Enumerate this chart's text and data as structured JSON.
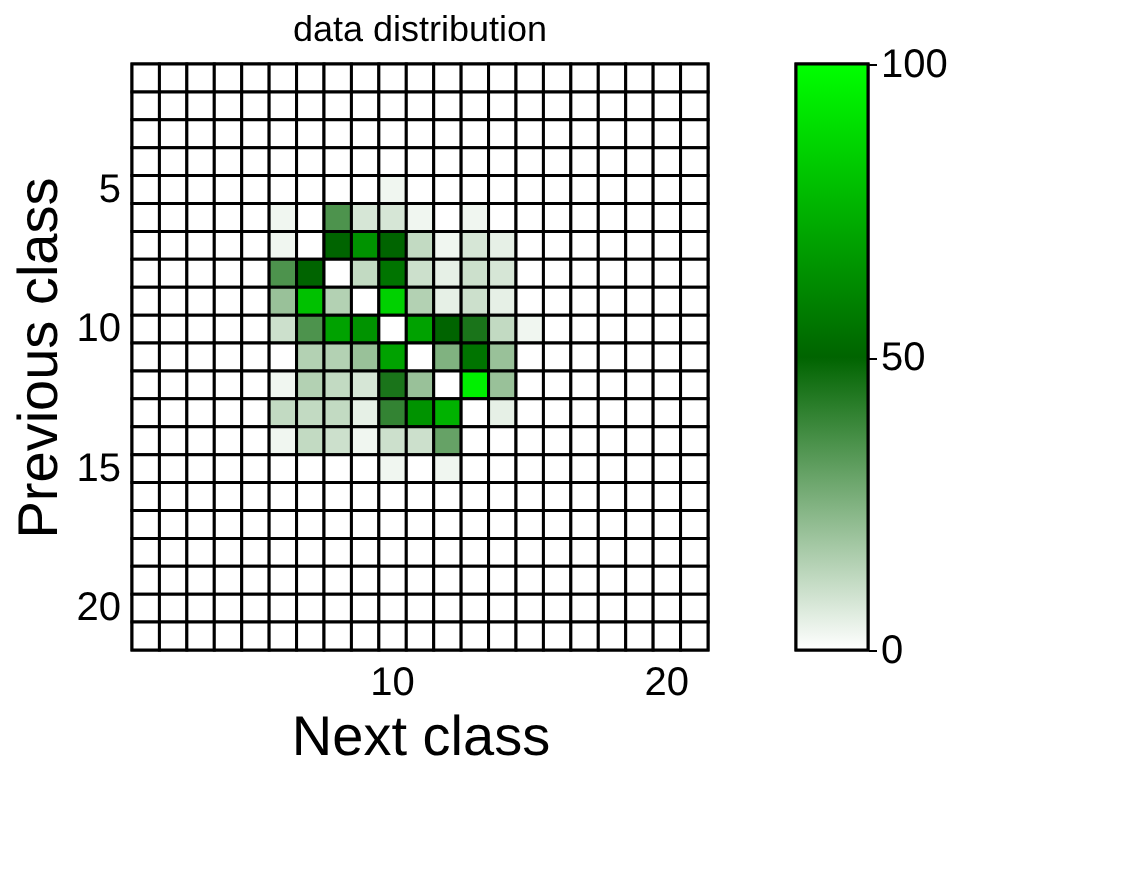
{
  "chart_data": {
    "type": "heatmap",
    "title": "data distribution",
    "xlabel": "Next class",
    "ylabel": "Previous class",
    "categories": [
      null,
      null,
      null,
      null,
      null,
      null,
      null,
      null,
      null,
      "10",
      null,
      null,
      null,
      null,
      null,
      null,
      null,
      null,
      null,
      "20",
      null
    ],
    "y_categories": [
      null,
      null,
      null,
      null,
      "5",
      null,
      null,
      null,
      null,
      "10",
      null,
      null,
      null,
      null,
      "15",
      null,
      null,
      null,
      null,
      "20",
      null
    ],
    "cells": [
      [
        0,
        0,
        0,
        0,
        0,
        0,
        0,
        0,
        0,
        0,
        0,
        0,
        0,
        0,
        0,
        0,
        0,
        0,
        0,
        0,
        0
      ],
      [
        0,
        0,
        0,
        0,
        0,
        0,
        0,
        0,
        0,
        0,
        0,
        0,
        0,
        0,
        0,
        0,
        0,
        0,
        0,
        0,
        0
      ],
      [
        0,
        0,
        0,
        0,
        0,
        0,
        0,
        0,
        0,
        0,
        0,
        0,
        0,
        0,
        0,
        0,
        0,
        0,
        0,
        0,
        0
      ],
      [
        0,
        0,
        0,
        0,
        0,
        0,
        0,
        0,
        0,
        0,
        0,
        0,
        0,
        0,
        0,
        0,
        0,
        0,
        0,
        0,
        0
      ],
      [
        0,
        0,
        0,
        0,
        0,
        0,
        0,
        0,
        0,
        3,
        0,
        0,
        0,
        0,
        0,
        0,
        0,
        0,
        0,
        0,
        0
      ],
      [
        0,
        0,
        0,
        0,
        0,
        3,
        0,
        35,
        8,
        8,
        3,
        0,
        3,
        0,
        0,
        0,
        0,
        0,
        0,
        0,
        0
      ],
      [
        0,
        0,
        0,
        0,
        0,
        3,
        0,
        50,
        65,
        50,
        12,
        3,
        8,
        5,
        0,
        0,
        0,
        0,
        0,
        0,
        0
      ],
      [
        0,
        0,
        0,
        0,
        0,
        35,
        50,
        0,
        12,
        55,
        10,
        5,
        10,
        8,
        0,
        0,
        0,
        0,
        0,
        0,
        0
      ],
      [
        0,
        0,
        0,
        0,
        0,
        20,
        80,
        15,
        0,
        85,
        15,
        5,
        10,
        5,
        0,
        0,
        0,
        0,
        0,
        0,
        0
      ],
      [
        0,
        0,
        0,
        0,
        0,
        10,
        35,
        70,
        65,
        0,
        70,
        50,
        45,
        12,
        3,
        0,
        0,
        0,
        0,
        0,
        0
      ],
      [
        0,
        0,
        0,
        0,
        0,
        0,
        15,
        15,
        20,
        70,
        0,
        25,
        55,
        20,
        0,
        0,
        0,
        0,
        0,
        0,
        0
      ],
      [
        0,
        0,
        0,
        0,
        0,
        3,
        15,
        12,
        8,
        45,
        20,
        0,
        95,
        20,
        0,
        0,
        0,
        0,
        0,
        0,
        0
      ],
      [
        0,
        0,
        0,
        0,
        0,
        12,
        12,
        12,
        5,
        40,
        65,
        75,
        0,
        5,
        0,
        0,
        0,
        0,
        0,
        0,
        0
      ],
      [
        0,
        0,
        0,
        0,
        0,
        3,
        12,
        10,
        3,
        10,
        10,
        30,
        0,
        0,
        0,
        0,
        0,
        0,
        0,
        0,
        0
      ],
      [
        0,
        0,
        0,
        0,
        0,
        0,
        0,
        0,
        0,
        3,
        0,
        3,
        0,
        0,
        0,
        0,
        0,
        0,
        0,
        0,
        0
      ],
      [
        0,
        0,
        0,
        0,
        0,
        0,
        0,
        0,
        0,
        0,
        0,
        0,
        0,
        0,
        0,
        0,
        0,
        0,
        0,
        0,
        0
      ],
      [
        0,
        0,
        0,
        0,
        0,
        0,
        0,
        0,
        0,
        0,
        0,
        0,
        0,
        0,
        0,
        0,
        0,
        0,
        0,
        0,
        0
      ],
      [
        0,
        0,
        0,
        0,
        0,
        0,
        0,
        0,
        0,
        0,
        0,
        0,
        0,
        0,
        0,
        0,
        0,
        0,
        0,
        0,
        0
      ],
      [
        0,
        0,
        0,
        0,
        0,
        0,
        0,
        0,
        0,
        0,
        0,
        0,
        0,
        0,
        0,
        0,
        0,
        0,
        0,
        0,
        0
      ],
      [
        0,
        0,
        0,
        0,
        0,
        0,
        0,
        0,
        0,
        0,
        0,
        0,
        0,
        0,
        0,
        0,
        0,
        0,
        0,
        0,
        0
      ],
      [
        0,
        0,
        0,
        0,
        0,
        0,
        0,
        0,
        0,
        0,
        0,
        0,
        0,
        0,
        0,
        0,
        0,
        0,
        0,
        0,
        0
      ]
    ],
    "clim": [
      0,
      100
    ],
    "cticks": [
      0,
      50,
      100
    ]
  }
}
